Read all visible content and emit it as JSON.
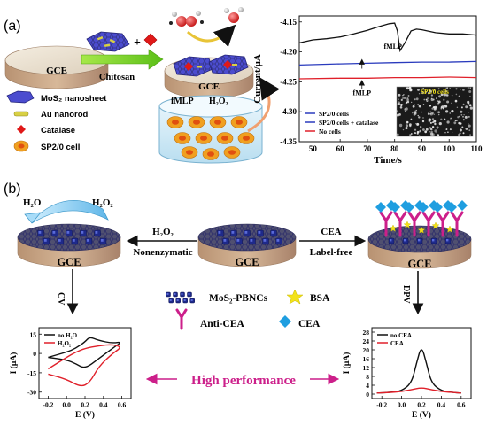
{
  "panels": {
    "a": {
      "label": "(a)",
      "electrode_label": "GCE",
      "arrow_label": "Chitosan",
      "plus": "+",
      "legend": {
        "mos2": "MoS₂ nanosheet",
        "au": "Au nanorod",
        "catalase": "Catalase",
        "cell": "SP2/0 cell"
      },
      "fmlp_label": "fMLP",
      "h2o2_label": "H₂O₂",
      "chart": {
        "ylabel": "Current/μA",
        "xlabel": "Time/s",
        "annotation_top": "fMLP",
        "annotation_bottom": "fMLP",
        "legend": [
          "SP2/0 cells",
          "SP2/0 cells + catalase",
          "No cells"
        ],
        "inset_label": "SP2/0 cells"
      }
    },
    "b": {
      "label": "(b)",
      "h2o_label": "H₂O",
      "h2o2_label": "H₂O₂",
      "left_electrode": "GCE",
      "center_electrode": "GCE",
      "right_electrode": "GCE",
      "mid_h2o2": "H₂O₂",
      "mid_nonenzymatic": "Nonenzymatic",
      "mid_cea": "CEA",
      "mid_labelfree": "Label-free",
      "cv_label": "CV",
      "dpv_label": "DPV",
      "legend": {
        "mos2_pbncs": "MoS₂-PBNCs",
        "bsa": "BSA",
        "anti_cea": "Anti-CEA",
        "cea": "CEA"
      },
      "high_performance": "High performance",
      "cv_chart": {
        "ylabel": "I (μA)",
        "xlabel": "E (V)",
        "legend": [
          "no H₂O",
          "H₂O₂"
        ]
      },
      "dpv_chart": {
        "ylabel": "I (μA)",
        "xlabel": "E (V)",
        "legend": [
          "no CEA",
          "CEA"
        ]
      }
    }
  },
  "colors": {
    "gce_top": "#efe6d6",
    "gce_side": "#c9a98a",
    "mos2": "#3a3fb0",
    "chart_black": "#111111",
    "chart_blue": "#2a3bbd",
    "chart_red": "#e0202a",
    "magenta": "#cc1f8a",
    "cea_blue": "#1f9ee0",
    "bsa_yellow": "#f2e21a",
    "chitosan_arrow": "#7cd32a",
    "cell_orange": "#f0a020"
  },
  "chart_data": [
    {
      "type": "line",
      "title": "",
      "xlabel": "Time/s",
      "ylabel": "Current/μA",
      "xlim": [
        45,
        110
      ],
      "ylim": [
        -4.35,
        -4.14
      ],
      "xticks": [
        50,
        60,
        70,
        80,
        90,
        100,
        110
      ],
      "yticks": [
        -4.15,
        -4.2,
        -4.25,
        -4.3,
        -4.35
      ],
      "legend_position": "bottom-left",
      "series": [
        {
          "name": "SP2/0 cells",
          "x": [
            45,
            50,
            55,
            60,
            65,
            70,
            74,
            78,
            80,
            81,
            82,
            84,
            86,
            88,
            90,
            95,
            100,
            105,
            110
          ],
          "y": [
            -4.185,
            -4.18,
            -4.178,
            -4.175,
            -4.17,
            -4.164,
            -4.158,
            -4.153,
            -4.152,
            -4.165,
            -4.198,
            -4.183,
            -4.165,
            -4.162,
            -4.163,
            -4.168,
            -4.17,
            -4.17,
            -4.172
          ]
        },
        {
          "name": "SP2/0 cells + catalase",
          "x": [
            45,
            60,
            70,
            80,
            90,
            100,
            110
          ],
          "y": [
            -4.222,
            -4.22,
            -4.219,
            -4.218,
            -4.217,
            -4.217,
            -4.216
          ]
        },
        {
          "name": "No cells",
          "x": [
            45,
            60,
            70,
            80,
            90,
            100,
            110
          ],
          "y": [
            -4.245,
            -4.244,
            -4.244,
            -4.243,
            -4.243,
            -4.242,
            -4.243
          ]
        }
      ]
    },
    {
      "type": "line",
      "title": "",
      "xlabel": "E (V)",
      "ylabel": "I (μA)",
      "xlim": [
        -0.3,
        0.7
      ],
      "ylim": [
        -35,
        20
      ],
      "xticks": [
        -0.2,
        0.0,
        0.2,
        0.4,
        0.6
      ],
      "yticks": [
        15,
        0,
        -15,
        -30
      ],
      "legend_position": "top-left",
      "series": [
        {
          "name": "no H₂O",
          "x": [
            -0.2,
            0.0,
            0.1,
            0.2,
            0.25,
            0.35,
            0.5,
            0.6,
            0.5,
            0.35,
            0.2,
            0.1,
            0.0,
            -0.2
          ],
          "y": [
            -3,
            1,
            4,
            9,
            13,
            10,
            8,
            9,
            4,
            -4,
            -12,
            -8,
            -5,
            -3
          ]
        },
        {
          "name": "H₂O₂",
          "x": [
            -0.2,
            0.0,
            0.1,
            0.2,
            0.35,
            0.5,
            0.6,
            0.5,
            0.35,
            0.25,
            0.15,
            0.0,
            -0.2
          ],
          "y": [
            -12,
            -3,
            1,
            4,
            6,
            7,
            5,
            0,
            -10,
            -23,
            -26,
            -20,
            -16
          ]
        }
      ]
    },
    {
      "type": "line",
      "title": "",
      "xlabel": "E (V)",
      "ylabel": "I (μA)",
      "xlim": [
        -0.3,
        0.7
      ],
      "ylim": [
        -2,
        30
      ],
      "xticks": [
        -0.2,
        0.0,
        0.2,
        0.4,
        0.6
      ],
      "yticks": [
        0,
        4,
        8,
        12,
        16,
        20,
        24,
        28
      ],
      "legend_position": "top-left",
      "series": [
        {
          "name": "no CEA",
          "x": [
            -0.25,
            -0.1,
            0.0,
            0.1,
            0.15,
            0.2,
            0.25,
            0.3,
            0.4,
            0.5,
            0.6
          ],
          "y": [
            0.5,
            0.8,
            1.5,
            5,
            14,
            22,
            14,
            5,
            1.5,
            0.8,
            0.5
          ]
        },
        {
          "name": "CEA",
          "x": [
            -0.25,
            -0.1,
            0.0,
            0.1,
            0.2,
            0.3,
            0.4,
            0.5,
            0.6
          ],
          "y": [
            0.5,
            0.8,
            1.2,
            2.0,
            3.0,
            2.0,
            1.2,
            0.8,
            0.5
          ]
        }
      ]
    }
  ]
}
